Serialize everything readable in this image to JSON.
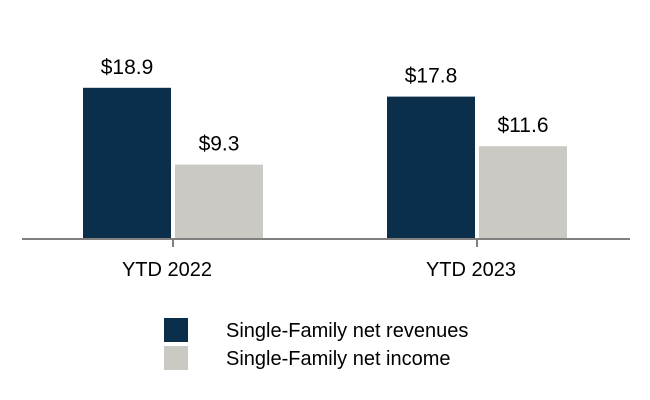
{
  "chart_data": {
    "type": "bar",
    "categories": [
      "YTD 2022",
      "YTD 2023"
    ],
    "series": [
      {
        "name": "Single-Family net revenues",
        "values": [
          18.9,
          17.8
        ],
        "labels": [
          "$18.9",
          "$17.8"
        ],
        "color": "#0b2e4a"
      },
      {
        "name": "Single-Family net income",
        "values": [
          9.3,
          11.6
        ],
        "labels": [
          "$9.3",
          "$11.6"
        ],
        "color": "#cbc9c4"
      }
    ],
    "ylim": [
      0,
      20
    ],
    "grid": false,
    "legend_position": "bottom",
    "axis_color": "#808080"
  }
}
